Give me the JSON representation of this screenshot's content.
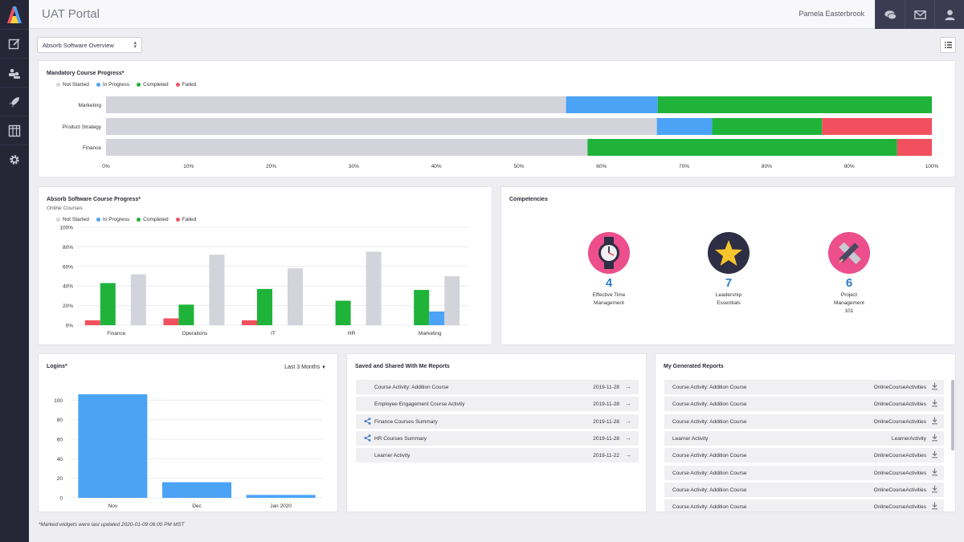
{
  "header": {
    "title": "UAT Portal",
    "user_name": "Pamela Easterbrook"
  },
  "sidebar": {
    "items": [
      {
        "icon": "edit-icon"
      },
      {
        "icon": "users-icon"
      },
      {
        "icon": "rocket-icon"
      },
      {
        "icon": "table-icon"
      },
      {
        "icon": "gear-icon"
      }
    ]
  },
  "top_buttons": [
    {
      "icon": "chat-icon"
    },
    {
      "icon": "mail-icon"
    },
    {
      "icon": "user-icon"
    }
  ],
  "dashboard_select": {
    "value": "Absorb Software Overview"
  },
  "colors": {
    "not_started": "#d3d3dc",
    "in_progress": "#4aa3f5",
    "completed": "#1fb33a",
    "failed": "#f2505e"
  },
  "legend": {
    "not_started": "Not Started",
    "in_progress": "In Progress",
    "completed": "Completed",
    "failed": "Failed"
  },
  "mandatory": {
    "title": "Mandatory Course Progress*",
    "chart_data": {
      "type": "bar",
      "orientation": "horizontal",
      "stacked": true,
      "categories": [
        "Marketing",
        "Product Strategy",
        "Finance"
      ],
      "series": [
        {
          "name": "Not Started",
          "values": [
            55.7,
            66.7,
            58.3
          ]
        },
        {
          "name": "In Progress",
          "values": [
            11.1,
            6.7,
            0
          ]
        },
        {
          "name": "Completed",
          "values": [
            33.2,
            13.3,
            37.5
          ]
        },
        {
          "name": "Failed",
          "values": [
            0,
            13.3,
            4.2
          ]
        }
      ],
      "xlim": [
        0,
        100
      ],
      "ticks": [
        "0%",
        "10%",
        "20%",
        "30%",
        "40%",
        "50%",
        "60%",
        "70%",
        "80%",
        "90%",
        "100%"
      ]
    }
  },
  "course_progress": {
    "title": "Absorb Software Course Progress*",
    "subtitle": "Online Courses",
    "chart_data": {
      "type": "bar",
      "categories": [
        "Finance",
        "Operations",
        "IT",
        "HR",
        "Marketing"
      ],
      "series": [
        {
          "name": "Failed",
          "values": [
            5,
            7,
            5,
            0,
            0
          ]
        },
        {
          "name": "Completed",
          "values": [
            43,
            21,
            37,
            25,
            36
          ]
        },
        {
          "name": "In Progress",
          "values": [
            0,
            0,
            0,
            0,
            14
          ]
        },
        {
          "name": "Not Started",
          "values": [
            52,
            72,
            58,
            75,
            50
          ]
        }
      ],
      "ylim": [
        0,
        100
      ],
      "ticks": [
        "0%",
        "20%",
        "40%",
        "60%",
        "80%",
        "100%"
      ]
    }
  },
  "competencies": {
    "title": "Competencies",
    "items": [
      {
        "count": "4",
        "name_line1": "Effective Time",
        "name_line2": "Management",
        "name_line3": "",
        "icon": "watch-icon"
      },
      {
        "count": "7",
        "name_line1": "Leadership",
        "name_line2": "Essentials",
        "name_line3": "",
        "icon": "star-icon"
      },
      {
        "count": "6",
        "name_line1": "Project",
        "name_line2": "Management",
        "name_line3": "101",
        "icon": "pencil-ruler-icon"
      }
    ]
  },
  "logins": {
    "title": "Logins*",
    "range": "Last 3 Months",
    "chart_data": {
      "type": "bar",
      "categories": [
        "Nov",
        "Dec",
        "Jan 2020"
      ],
      "values": [
        106,
        16,
        3
      ],
      "ylim": [
        0,
        120
      ],
      "ticks": [
        "0",
        "20",
        "40",
        "60",
        "80",
        "100"
      ]
    }
  },
  "saved_reports": {
    "title": "Saved and Shared With Me Reports",
    "rows": [
      {
        "name": "Course Activity: Addition Course",
        "date": "2019-11-28",
        "shared": false
      },
      {
        "name": "Employee Engagement Course Activity",
        "date": "2019-11-28",
        "shared": false
      },
      {
        "name": "Finance Courses Summary",
        "date": "2019-11-28",
        "shared": true
      },
      {
        "name": "HR Courses Summary",
        "date": "2019-11-28",
        "shared": true
      },
      {
        "name": "Learner Activity",
        "date": "2019-11-22",
        "shared": false
      }
    ]
  },
  "generated_reports": {
    "title": "My Generated Reports",
    "rows": [
      {
        "name": "Course Activity: Addition Course",
        "type": "OnlineCourseActivities"
      },
      {
        "name": "Course Activity: Addition Course",
        "type": "OnlineCourseActivities"
      },
      {
        "name": "Course Activity: Addition Course",
        "type": "OnlineCourseActivities"
      },
      {
        "name": "Learner Activity",
        "type": "LearnerActivity"
      },
      {
        "name": "Course Activity: Addition Course",
        "type": "OnlineCourseActivities"
      },
      {
        "name": "Course Activity: Addition Course",
        "type": "OnlineCourseActivities"
      },
      {
        "name": "Course Activity: Addition Course",
        "type": "OnlineCourseActivities"
      },
      {
        "name": "Course Activity: Addition Course",
        "type": "OnlineCourseActivities"
      }
    ]
  },
  "footnote": "*Marked widgets were last updated 2020-01-09 06:00 PM MST"
}
